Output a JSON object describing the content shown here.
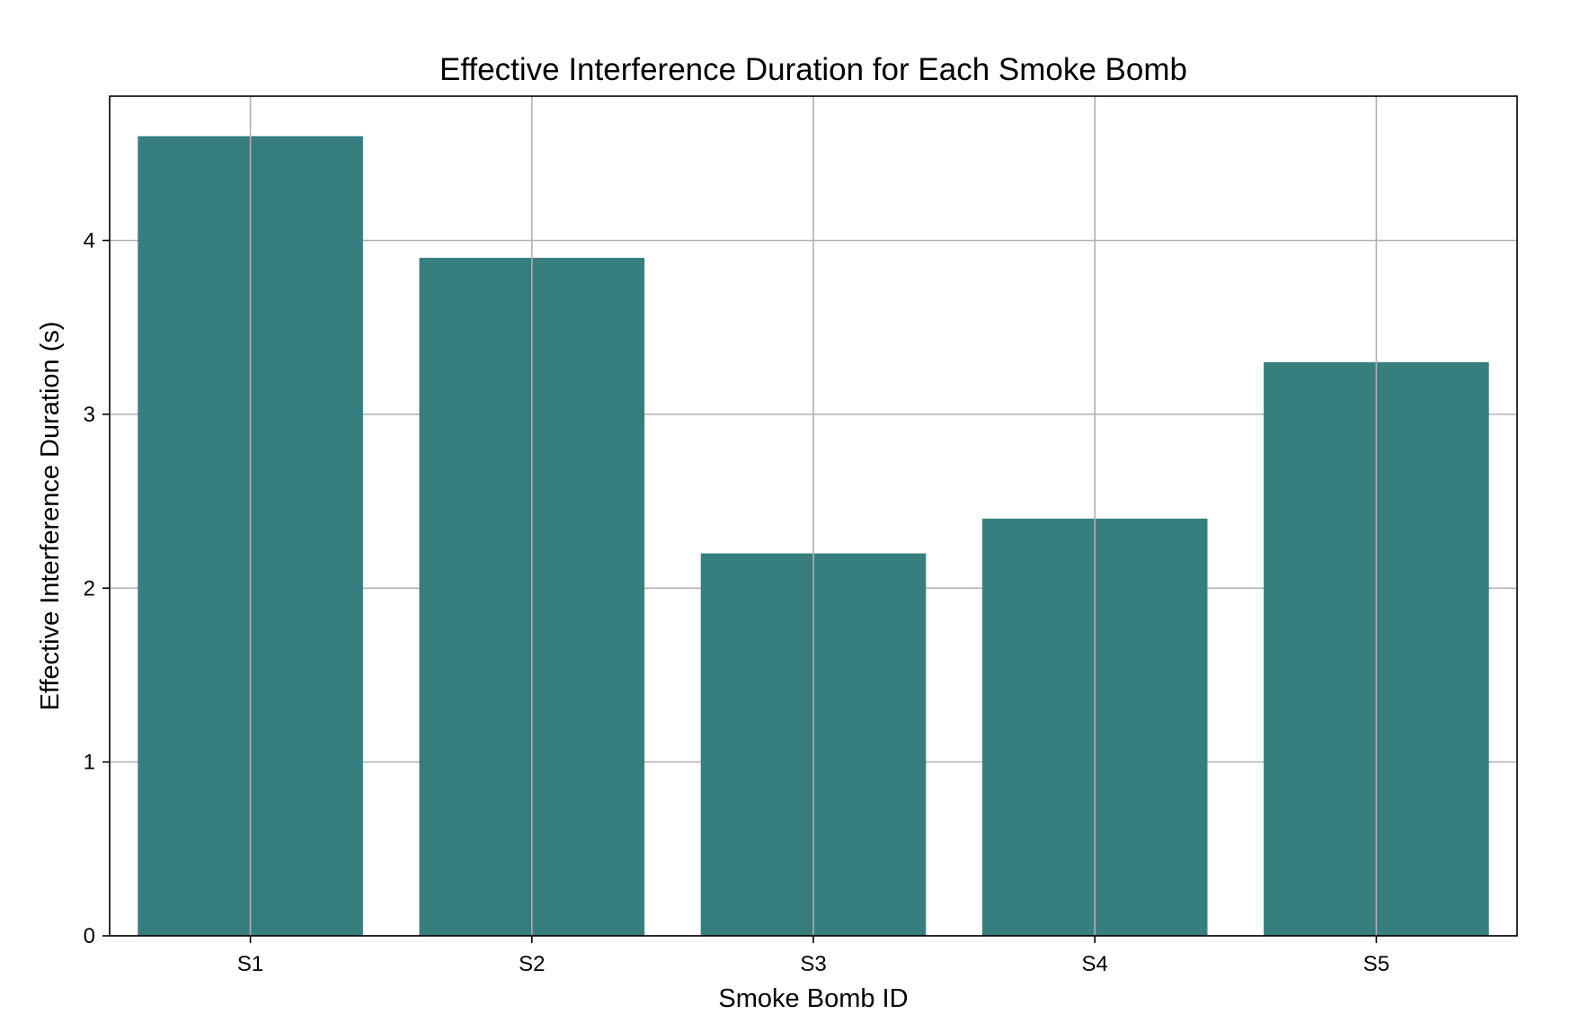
{
  "chart_data": {
    "type": "bar",
    "title": "Effective Interference Duration for Each Smoke Bomb",
    "xlabel": "Smoke Bomb ID",
    "ylabel": "Effective Interference Duration (s)",
    "categories": [
      "S1",
      "S2",
      "S3",
      "S4",
      "S5"
    ],
    "values": [
      4.6,
      3.9,
      2.2,
      2.4,
      3.3
    ],
    "ylim": [
      0,
      4.83
    ],
    "yticks": [
      0,
      1,
      2,
      3,
      4
    ],
    "grid": true,
    "bar_color": "#377e7f",
    "grid_color": "#b0b0b0"
  }
}
